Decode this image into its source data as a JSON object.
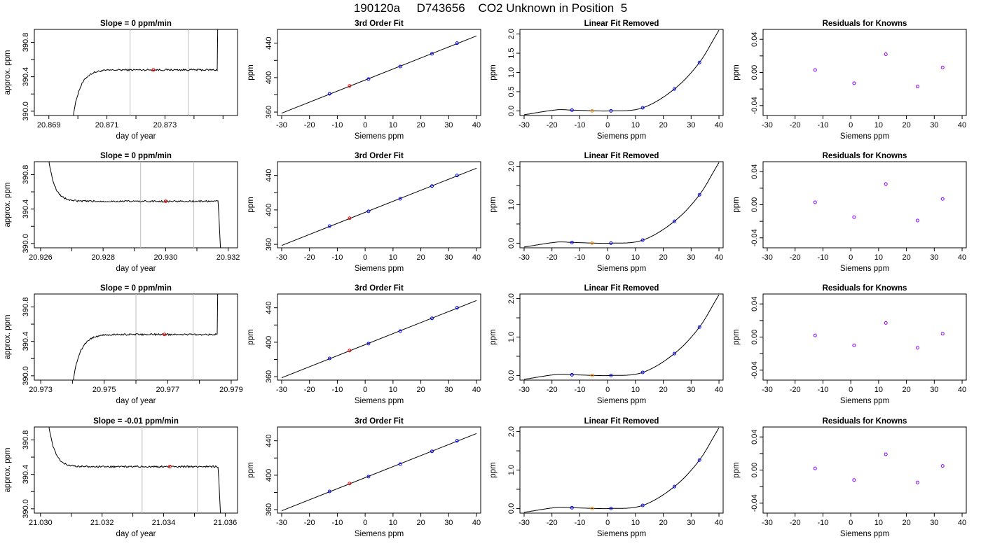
{
  "figure": {
    "title": "190120a     D743656    CO2 Unknown in Position  5"
  },
  "colors": {
    "trace": "#000000",
    "vline": "#bdbdbd",
    "known": "#0000ff",
    "unknown": "#ff0000",
    "unknown_linear": "#ff8c00",
    "residual": "#8b00ff"
  },
  "chart_data": [
    {
      "id": "r1c1",
      "type": "line",
      "title": "Slope =  0  ppm/min",
      "xlabel": "day of year",
      "ylabel": "approx. ppm",
      "xlim": [
        20.8685,
        20.8755
      ],
      "ylim": [
        389.95,
        390.95
      ],
      "xticks": [
        20.869,
        20.87,
        20.871,
        20.872,
        20.873,
        20.874,
        20.875
      ],
      "xtick_labels": [
        "20.869",
        "",
        "20.871",
        "",
        "20.873",
        "",
        ""
      ],
      "yticks": [
        390.0,
        390.2,
        390.4,
        390.6,
        390.8
      ],
      "ytick_labels": [
        "390.0",
        "",
        "390.4",
        "",
        "390.8"
      ],
      "vlines": [
        20.8718,
        20.8738
      ],
      "unknown_point": [
        20.8726,
        390.48
      ],
      "trace_shape": "rise"
    },
    {
      "id": "r1c2",
      "type": "line",
      "title": "3rd Order Fit",
      "xlabel": "Siemens ppm",
      "ylabel": "ppm",
      "xlim": [
        -31.5,
        41.5
      ],
      "ylim": [
        356,
        456
      ],
      "xticks": [
        -30,
        -20,
        -10,
        0,
        10,
        20,
        30,
        40
      ],
      "xtick_labels": [
        "-30",
        "-20",
        "-10",
        "0",
        "10",
        "20",
        "30",
        "40"
      ],
      "yticks": [
        360,
        380,
        400,
        420,
        440
      ],
      "ytick_labels": [
        "360",
        "",
        "400",
        "",
        "440"
      ],
      "knowns": [
        [
          -12.8,
          381.2
        ],
        [
          1.2,
          398.4
        ],
        [
          12.6,
          412.9
        ],
        [
          24.0,
          427.7
        ],
        [
          33.0,
          440.0
        ]
      ],
      "unknown": [
        -5.6,
        390.4
      ]
    },
    {
      "id": "r1c3",
      "type": "line",
      "title": "Linear Fit Removed",
      "xlabel": "Siemens ppm",
      "ylabel": "ppm",
      "xlim": [
        -31.5,
        41.5
      ],
      "ylim": [
        -0.12,
        2.12
      ],
      "xticks": [
        -30,
        -20,
        -10,
        0,
        10,
        20,
        30,
        40
      ],
      "xtick_labels": [
        "-30",
        "-20",
        "-10",
        "0",
        "10",
        "20",
        "30",
        "40"
      ],
      "yticks": [
        0.0,
        0.5,
        1.0,
        1.5,
        2.0
      ],
      "ytick_labels": [
        "0.0",
        "0.5",
        "1.0",
        "1.5",
        "2.0"
      ],
      "knowns": [
        [
          -12.8,
          0.02
        ],
        [
          1.2,
          0.0
        ],
        [
          12.6,
          0.08
        ],
        [
          24.0,
          0.57
        ],
        [
          33.0,
          1.26
        ]
      ],
      "unknown": [
        -5.6,
        0.0
      ]
    },
    {
      "id": "r1c4",
      "type": "scatter",
      "title": "Residuals for Knowns",
      "xlabel": "Siemens ppm",
      "ylabel": "ppm",
      "xlim": [
        -31.5,
        41.5
      ],
      "ylim": [
        -0.052,
        0.052
      ],
      "xticks": [
        -30,
        -20,
        -10,
        0,
        10,
        20,
        30,
        40
      ],
      "xtick_labels": [
        "-30",
        "-20",
        "-10",
        "0",
        "10",
        "20",
        "30",
        "40"
      ],
      "yticks": [
        -0.04,
        -0.02,
        0.0,
        0.02,
        0.04
      ],
      "ytick_labels": [
        "-0.04",
        "",
        "0.00",
        "",
        "0.04"
      ],
      "residuals": [
        [
          -12.8,
          0.003
        ],
        [
          1.2,
          -0.013
        ],
        [
          12.6,
          0.022
        ],
        [
          24.0,
          -0.017
        ],
        [
          33.0,
          0.006
        ]
      ]
    },
    {
      "id": "r2c1",
      "type": "line",
      "title": "Slope =  0  ppm/min",
      "xlabel": "day of year",
      "ylabel": "approx. ppm",
      "xlim": [
        20.9258,
        20.9323
      ],
      "ylim": [
        389.95,
        390.95
      ],
      "xticks": [
        20.926,
        20.927,
        20.928,
        20.929,
        20.93,
        20.931,
        20.932
      ],
      "xtick_labels": [
        "20.926",
        "",
        "20.928",
        "",
        "20.930",
        "",
        "20.932"
      ],
      "yticks": [
        390.0,
        390.2,
        390.4,
        390.6,
        390.8
      ],
      "ytick_labels": [
        "390.0",
        "",
        "390.4",
        "",
        "390.8"
      ],
      "vlines": [
        20.9292,
        20.9309
      ],
      "unknown_point": [
        20.93,
        390.49
      ],
      "trace_shape": "fall_then_drop"
    },
    {
      "id": "r2c2",
      "type": "line",
      "title": "3rd Order Fit",
      "xlabel": "Siemens ppm",
      "ylabel": "ppm",
      "xlim": [
        -31.5,
        41.5
      ],
      "ylim": [
        356,
        456
      ],
      "xticks": [
        -30,
        -20,
        -10,
        0,
        10,
        20,
        30,
        40
      ],
      "xtick_labels": [
        "-30",
        "-20",
        "-10",
        "0",
        "10",
        "20",
        "30",
        "40"
      ],
      "yticks": [
        360,
        380,
        400,
        420,
        440
      ],
      "ytick_labels": [
        "360",
        "",
        "400",
        "",
        "440"
      ],
      "knowns": [
        [
          -12.8,
          381.2
        ],
        [
          1.2,
          398.4
        ],
        [
          12.6,
          412.9
        ],
        [
          24.0,
          427.7
        ],
        [
          33.0,
          440.0
        ]
      ],
      "unknown": [
        -5.6,
        390.4
      ]
    },
    {
      "id": "r2c3",
      "type": "line",
      "title": "Linear Fit Removed",
      "xlabel": "Siemens ppm",
      "ylabel": "ppm",
      "xlim": [
        -31.5,
        41.5
      ],
      "ylim": [
        -0.12,
        2.12
      ],
      "xticks": [
        -30,
        -20,
        -10,
        0,
        10,
        20,
        30,
        40
      ],
      "xtick_labels": [
        "-30",
        "-20",
        "-10",
        "0",
        "10",
        "20",
        "30",
        "40"
      ],
      "yticks": [
        0.0,
        0.5,
        1.0,
        1.5,
        2.0
      ],
      "ytick_labels": [
        "0.0",
        "",
        "1.0",
        "",
        "2.0"
      ],
      "knowns": [
        [
          -12.8,
          0.02
        ],
        [
          1.2,
          0.0
        ],
        [
          12.6,
          0.08
        ],
        [
          24.0,
          0.57
        ],
        [
          33.0,
          1.26
        ]
      ],
      "unknown": [
        -5.6,
        0.0
      ]
    },
    {
      "id": "r2c4",
      "type": "scatter",
      "title": "Residuals for Knowns",
      "xlabel": "Siemens ppm",
      "ylabel": "ppm",
      "xlim": [
        -31.5,
        41.5
      ],
      "ylim": [
        -0.052,
        0.052
      ],
      "xticks": [
        -30,
        -20,
        -10,
        0,
        10,
        20,
        30,
        40
      ],
      "xtick_labels": [
        "-30",
        "-20",
        "-10",
        "0",
        "10",
        "20",
        "30",
        "40"
      ],
      "yticks": [
        -0.04,
        -0.02,
        0.0,
        0.02,
        0.04
      ],
      "ytick_labels": [
        "-0.04",
        "",
        "0.00",
        "",
        "0.04"
      ],
      "residuals": [
        [
          -12.8,
          0.003
        ],
        [
          1.2,
          -0.015
        ],
        [
          12.6,
          0.025
        ],
        [
          24.0,
          -0.019
        ],
        [
          33.0,
          0.007
        ]
      ]
    },
    {
      "id": "r3c1",
      "type": "line",
      "title": "Slope =  0  ppm/min",
      "xlabel": "day of year",
      "ylabel": "approx. ppm",
      "xlim": [
        20.9728,
        20.9792
      ],
      "ylim": [
        389.95,
        390.95
      ],
      "xticks": [
        20.973,
        20.974,
        20.975,
        20.976,
        20.977,
        20.978,
        20.979
      ],
      "xtick_labels": [
        "20.973",
        "",
        "20.975",
        "",
        "20.977",
        "",
        "20.979"
      ],
      "yticks": [
        390.0,
        390.2,
        390.4,
        390.6,
        390.8
      ],
      "ytick_labels": [
        "390.0",
        "",
        "390.4",
        "",
        "390.8"
      ],
      "vlines": [
        20.976,
        20.9778
      ],
      "unknown_point": [
        20.9769,
        390.48
      ],
      "trace_shape": "rise"
    },
    {
      "id": "r3c2",
      "type": "line",
      "title": "3rd Order Fit",
      "xlabel": "Siemens ppm",
      "ylabel": "ppm",
      "xlim": [
        -31.5,
        41.5
      ],
      "ylim": [
        356,
        456
      ],
      "xticks": [
        -30,
        -20,
        -10,
        0,
        10,
        20,
        30,
        40
      ],
      "xtick_labels": [
        "-30",
        "-20",
        "-10",
        "0",
        "10",
        "20",
        "30",
        "40"
      ],
      "yticks": [
        360,
        380,
        400,
        420,
        440
      ],
      "ytick_labels": [
        "360",
        "",
        "400",
        "",
        "440"
      ],
      "knowns": [
        [
          -12.8,
          381.2
        ],
        [
          1.2,
          398.4
        ],
        [
          12.6,
          412.9
        ],
        [
          24.0,
          427.7
        ],
        [
          33.0,
          440.0
        ]
      ],
      "unknown": [
        -5.6,
        390.4
      ]
    },
    {
      "id": "r3c3",
      "type": "line",
      "title": "Linear Fit Removed",
      "xlabel": "Siemens ppm",
      "ylabel": "ppm",
      "xlim": [
        -31.5,
        41.5
      ],
      "ylim": [
        -0.12,
        2.12
      ],
      "xticks": [
        -30,
        -20,
        -10,
        0,
        10,
        20,
        30,
        40
      ],
      "xtick_labels": [
        "-30",
        "-20",
        "-10",
        "0",
        "10",
        "20",
        "30",
        "40"
      ],
      "yticks": [
        0.0,
        0.5,
        1.0,
        1.5,
        2.0
      ],
      "ytick_labels": [
        "0.0",
        "",
        "1.0",
        "",
        "2.0"
      ],
      "knowns": [
        [
          -12.8,
          0.02
        ],
        [
          1.2,
          0.0
        ],
        [
          12.6,
          0.08
        ],
        [
          24.0,
          0.57
        ],
        [
          33.0,
          1.26
        ]
      ],
      "unknown": [
        -5.6,
        0.0
      ]
    },
    {
      "id": "r3c4",
      "type": "scatter",
      "title": "Residuals for Knowns",
      "xlabel": "Siemens ppm",
      "ylabel": "ppm",
      "xlim": [
        -31.5,
        41.5
      ],
      "ylim": [
        -0.052,
        0.052
      ],
      "xticks": [
        -30,
        -20,
        -10,
        0,
        10,
        20,
        30,
        40
      ],
      "xtick_labels": [
        "-30",
        "-20",
        "-10",
        "0",
        "10",
        "20",
        "30",
        "40"
      ],
      "yticks": [
        -0.04,
        -0.02,
        0.0,
        0.02,
        0.04
      ],
      "ytick_labels": [
        "-0.04",
        "",
        "0.00",
        "",
        "0.04"
      ],
      "residuals": [
        [
          -12.8,
          0.002
        ],
        [
          1.2,
          -0.01
        ],
        [
          12.6,
          0.017
        ],
        [
          24.0,
          -0.013
        ],
        [
          33.0,
          0.004
        ]
      ]
    },
    {
      "id": "r4c1",
      "type": "line",
      "title": "Slope =  -0.01  ppm/min",
      "xlabel": "day of year",
      "ylabel": "approx. ppm",
      "xlim": [
        21.0298,
        21.0364
      ],
      "ylim": [
        389.95,
        390.95
      ],
      "xticks": [
        21.03,
        21.031,
        21.032,
        21.033,
        21.034,
        21.035,
        21.036
      ],
      "xtick_labels": [
        "21.030",
        "",
        "21.032",
        "",
        "21.034",
        "",
        "21.036"
      ],
      "yticks": [
        390.0,
        390.2,
        390.4,
        390.6,
        390.8
      ],
      "ytick_labels": [
        "390.0",
        "",
        "390.4",
        "",
        "390.8"
      ],
      "vlines": [
        21.0333,
        21.0351
      ],
      "unknown_point": [
        21.0342,
        390.49
      ],
      "trace_shape": "fall_then_drop"
    },
    {
      "id": "r4c2",
      "type": "line",
      "title": "3rd Order Fit",
      "xlabel": "Siemens ppm",
      "ylabel": "ppm",
      "xlim": [
        -31.5,
        41.5
      ],
      "ylim": [
        356,
        456
      ],
      "xticks": [
        -30,
        -20,
        -10,
        0,
        10,
        20,
        30,
        40
      ],
      "xtick_labels": [
        "-30",
        "-20",
        "-10",
        "0",
        "10",
        "20",
        "30",
        "40"
      ],
      "yticks": [
        360,
        380,
        400,
        420,
        440
      ],
      "ytick_labels": [
        "360",
        "",
        "400",
        "",
        "440"
      ],
      "knowns": [
        [
          -12.8,
          381.2
        ],
        [
          1.2,
          398.4
        ],
        [
          12.6,
          412.9
        ],
        [
          24.0,
          427.7
        ],
        [
          33.0,
          440.0
        ]
      ],
      "unknown": [
        -5.6,
        390.4
      ]
    },
    {
      "id": "r4c3",
      "type": "line",
      "title": "Linear Fit Removed",
      "xlabel": "Siemens ppm",
      "ylabel": "ppm",
      "xlim": [
        -31.5,
        41.5
      ],
      "ylim": [
        -0.12,
        2.12
      ],
      "xticks": [
        -30,
        -20,
        -10,
        0,
        10,
        20,
        30,
        40
      ],
      "xtick_labels": [
        "-30",
        "-20",
        "-10",
        "0",
        "10",
        "20",
        "30",
        "40"
      ],
      "yticks": [
        0.0,
        0.5,
        1.0,
        1.5,
        2.0
      ],
      "ytick_labels": [
        "0.0",
        "",
        "1.0",
        "",
        "2.0"
      ],
      "knowns": [
        [
          -12.8,
          0.02
        ],
        [
          1.2,
          0.0
        ],
        [
          12.6,
          0.08
        ],
        [
          24.0,
          0.57
        ],
        [
          33.0,
          1.26
        ]
      ],
      "unknown": [
        -5.6,
        0.0
      ]
    },
    {
      "id": "r4c4",
      "type": "scatter",
      "title": "Residuals for Knowns",
      "xlabel": "Siemens ppm",
      "ylabel": "ppm",
      "xlim": [
        -31.5,
        41.5
      ],
      "ylim": [
        -0.052,
        0.052
      ],
      "xticks": [
        -30,
        -20,
        -10,
        0,
        10,
        20,
        30,
        40
      ],
      "xtick_labels": [
        "-30",
        "-20",
        "-10",
        "0",
        "10",
        "20",
        "30",
        "40"
      ],
      "yticks": [
        -0.04,
        -0.02,
        0.0,
        0.02,
        0.04
      ],
      "ytick_labels": [
        "-0.04",
        "",
        "0.00",
        "",
        "0.04"
      ],
      "residuals": [
        [
          -12.8,
          0.002
        ],
        [
          1.2,
          -0.012
        ],
        [
          12.6,
          0.019
        ],
        [
          24.0,
          -0.015
        ],
        [
          33.0,
          0.005
        ]
      ]
    }
  ]
}
